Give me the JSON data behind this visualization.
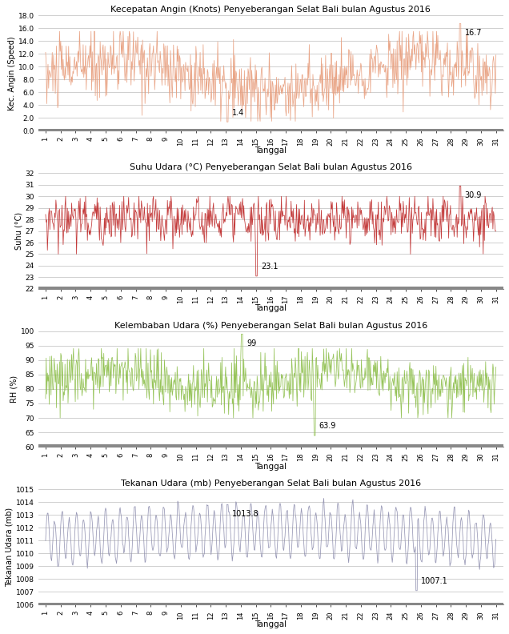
{
  "title1": "Kecepatan Angin (Knots) Penyeberangan Selat Bali bulan Agustus 2016",
  "title2": "Suhu Udara (°C) Penyeberangan Selat Bali bulan Agustus 2016",
  "title3": "Kelembaban Udara (%) Penyeberangan Selat Bali bulan Agustus 2016",
  "title4": "Tekanan Udara (mb) Penyeberangan Selat Bali bulan Agustus 2016",
  "xlabel": "Tanggal",
  "ylabel1": "Kec. Angin (Speed)",
  "ylabel2": "Suhu (°C)",
  "ylabel3": "RH (%)",
  "ylabel4": "Tekanan Udara (mb)",
  "color1": "#E8A080",
  "color2": "#C03030",
  "color3": "#90C050",
  "color4": "#9090B0",
  "ylim1": [
    0.0,
    18.0
  ],
  "ylim2": [
    22,
    32
  ],
  "ylim3": [
    60,
    100
  ],
  "ylim4": [
    1006,
    1015
  ],
  "yticks1": [
    0.0,
    2.0,
    4.0,
    6.0,
    8.0,
    10.0,
    12.0,
    14.0,
    16.0,
    18.0
  ],
  "yticks2": [
    22,
    23,
    24,
    25,
    26,
    27,
    28,
    29,
    30,
    31,
    32
  ],
  "yticks3": [
    60,
    65,
    70,
    75,
    80,
    85,
    90,
    95,
    100
  ],
  "yticks4": [
    1006,
    1007,
    1008,
    1009,
    1010,
    1011,
    1012,
    1013,
    1014,
    1015
  ],
  "min1_val": "1.4",
  "min1_day": 13,
  "max1_val": "16.7",
  "max1_day": 29,
  "min2_val": "23.1",
  "min2_day": 15,
  "max2_val": "30.9",
  "max2_day": 29,
  "min3_val": "63.9",
  "min3_day": 19,
  "max3_val": "99",
  "max3_day": 14,
  "min4_val": "1007.1",
  "min4_day": 26,
  "max4_val": "1013.8",
  "max4_day": 13,
  "n_days": 31,
  "pts_per_day": 24
}
